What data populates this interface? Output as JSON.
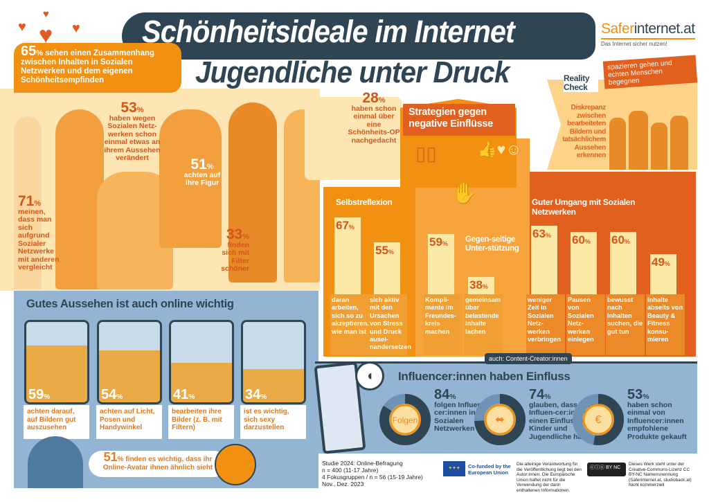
{
  "header": {
    "title": "Schönheitsideale im Internet",
    "subtitle": "Jugendliche unter Druck"
  },
  "logo": {
    "brand_a": "Safer",
    "brand_b": "internet.at",
    "tagline": "Das Internet sicher nutzen!",
    "color": "#f29111"
  },
  "colors": {
    "dark": "#2f4553",
    "orange": "#f29111",
    "dark_orange": "#e05b24",
    "light_yellow": "#fde9a6",
    "blue": "#93b5d3"
  },
  "top_stats": {
    "s65": {
      "value": "65",
      "unit": "%",
      "text": "sehen einen Zusammenhang zwischen Inhalten in Sozialen Netzwerken und dem eigenen Schönheitsempfinden"
    },
    "s53": {
      "value": "53",
      "unit": "%",
      "text": "haben wegen Sozialen Netz-werken schon einmal etwas an ihrem Aussehen verändert"
    },
    "s71": {
      "value": "71",
      "unit": "%",
      "text": "meinen, dass man sich aufgrund Sozialer Netzwerke mit anderen vergleicht"
    },
    "s51": {
      "value": "51",
      "unit": "%",
      "text": "achten auf ihre Figur"
    },
    "s33": {
      "value": "33",
      "unit": "%",
      "text": "finden sich mit Filter schöner"
    },
    "s28": {
      "value": "28",
      "unit": "%",
      "text": "haben schon einmal über eine Schönheits-OP nachgedacht"
    }
  },
  "strategies": {
    "title": "Strategien gegen negative Einflüsse",
    "groups": {
      "selbst": "Selbstreflexion",
      "gegen": "Gegen-seitige Unter-stützung",
      "umgang": "Guter Umgang mit Sozialen Netzwerken"
    },
    "bars": [
      {
        "value": 67,
        "label": "daran arbeiten, sich so zu akzeptieren, wie man ist"
      },
      {
        "value": 55,
        "label": "sich aktiv mit den Ursachen von Stress und Druck ausei-nandersetzen"
      },
      {
        "value": 59,
        "label": "Kompli-mente im Freundes-kreis machen"
      },
      {
        "value": 38,
        "label": "gemeinsam über belastende Inhalte lachen"
      },
      {
        "value": 63,
        "label": "weniger Zeit in Sozialen Netz-werken verbringen"
      },
      {
        "value": 60,
        "label": "Pausen von Sozialen Netz-werken einlegen"
      },
      {
        "value": 60,
        "label": "bewusst nach Inhalten suchen, die gut tun"
      },
      {
        "value": 49,
        "label": "Inhalte abseits von Beauty & Fitness konsu-mieren"
      }
    ],
    "unit": "%"
  },
  "reality": {
    "title": "Reality Check",
    "tip": "spazieren gehen und echten Menschen begegnen",
    "text": "Diskrepanz zwischen bearbeiteten Bildern und tatsächlichem Aussehen erkennen"
  },
  "online": {
    "title": "Gutes Aussehen ist auch online wichtig",
    "cards": [
      {
        "value": "59",
        "unit": "%",
        "text": "achten darauf, auf Bildern gut auszusehen",
        "level": 59
      },
      {
        "value": "54",
        "unit": "%",
        "text": "achten auf Licht, Posen und Handywinkel",
        "level": 54
      },
      {
        "value": "41",
        "unit": "%",
        "text": "bearbeiten ihre Bilder (z. B. mit Filtern)",
        "level": 41
      },
      {
        "value": "34",
        "unit": "%",
        "text": "ist es wichtig, sich sexy darzustellen",
        "level": 34
      }
    ],
    "avatar": {
      "value": "51",
      "unit": "%",
      "text": "finden es wichtig, dass ihr Online-Avatar ihnen ähnlich sieht"
    }
  },
  "influencer": {
    "tag": "auch: Content-Creator:innen",
    "title": "Influencer:innen haben Einfluss",
    "stats": [
      {
        "value": 84,
        "unit": "%",
        "text": "folgen Influen-cer:innen in Sozialen Netzwerken",
        "icon": "follow-button-icon",
        "icon_text": "Folgen"
      },
      {
        "value": 74,
        "unit": "%",
        "text": "glauben, dass Fitness-Influen-cer:innen einen Einfluss auf Kinder und Jugendliche haben",
        "icon": "dumbbell-icon"
      },
      {
        "value": 53,
        "unit": "%",
        "text": "haben schon einmal von Influencer:innen empfohlene Produkte gekauft",
        "icon": "product-bottle-icon",
        "icon_text": "€"
      }
    ]
  },
  "footer": {
    "study": [
      "Studie 2024: Online-Befragung",
      "n = 400 (11-17 Jahre)",
      "4 Fokusgruppen / n = 56 (15-19 Jahre)",
      "Nov., Dez. 2023"
    ],
    "eu": "Co-funded by the European Union",
    "disclaimer": "Die alleinige Verantwortung für die Veröffentlichung liegt bei den Autor:innen. Die Europäische Union haftet nicht für die Verwendung der darin enthaltenen Informationen.",
    "cc_badge": "BY NC",
    "license": "Dieses Werk steht unter der Creative-Commons-Lizenz CC BY-NC Namensnennung (Saferinternet.at, studioback.at) Nicht kommerziell"
  }
}
